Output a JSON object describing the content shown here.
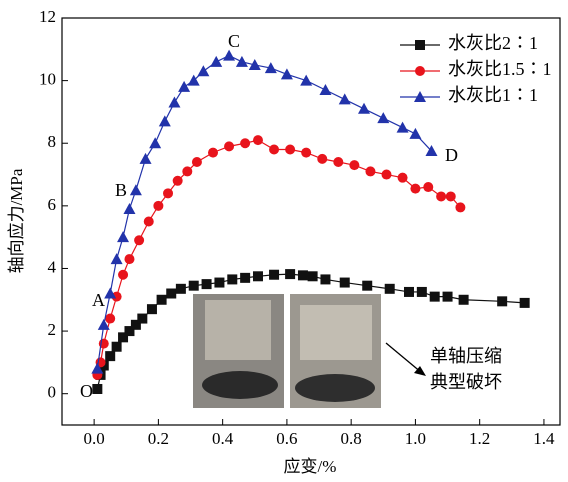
{
  "chart_data": {
    "type": "line",
    "x_label": "应变/%",
    "y_label": "轴向应力/MPa",
    "xlim": [
      -0.1,
      1.45
    ],
    "ylim": [
      -1,
      12
    ],
    "xticks": [
      {
        "value": 0,
        "label": "0.0"
      },
      {
        "value": 0.2,
        "label": "0.2"
      },
      {
        "value": 0.4,
        "label": "0.4"
      },
      {
        "value": 0.6,
        "label": "0.6"
      },
      {
        "value": 0.8,
        "label": "0.8"
      },
      {
        "value": 1.0,
        "label": "1.0"
      },
      {
        "value": 1.2,
        "label": "1.2"
      },
      {
        "value": 1.4,
        "label": "1.4"
      }
    ],
    "yticks": [
      0,
      2,
      4,
      6,
      8,
      10,
      12
    ],
    "legend": "upper-right",
    "annotations": {
      "O": "O",
      "A": "A",
      "B": "B",
      "C": "C",
      "D": "D",
      "note1": "单轴压缩",
      "note2": "典型破坏"
    },
    "series": [
      {
        "name": "水灰比2∶1",
        "color": "#111111",
        "marker": "square",
        "x": [
          0.01,
          0.02,
          0.03,
          0.05,
          0.07,
          0.09,
          0.11,
          0.13,
          0.15,
          0.18,
          0.21,
          0.24,
          0.27,
          0.31,
          0.35,
          0.39,
          0.43,
          0.47,
          0.51,
          0.56,
          0.61,
          0.65,
          0.68,
          0.72,
          0.78,
          0.85,
          0.92,
          0.98,
          1.02,
          1.06,
          1.1,
          1.15,
          1.27,
          1.34
        ],
        "values": [
          0.15,
          0.6,
          0.9,
          1.2,
          1.5,
          1.8,
          2.0,
          2.2,
          2.4,
          2.7,
          3.0,
          3.2,
          3.35,
          3.45,
          3.5,
          3.55,
          3.65,
          3.7,
          3.75,
          3.8,
          3.82,
          3.78,
          3.75,
          3.65,
          3.55,
          3.45,
          3.35,
          3.25,
          3.25,
          3.1,
          3.1,
          3.0,
          2.95,
          2.9
        ]
      },
      {
        "name": "水灰比1.5∶1",
        "color": "#e8141c",
        "marker": "circle",
        "x": [
          0.01,
          0.02,
          0.03,
          0.05,
          0.07,
          0.09,
          0.11,
          0.14,
          0.17,
          0.2,
          0.23,
          0.26,
          0.29,
          0.32,
          0.37,
          0.42,
          0.47,
          0.51,
          0.56,
          0.61,
          0.66,
          0.71,
          0.76,
          0.81,
          0.86,
          0.91,
          0.96,
          1.0,
          1.04,
          1.08,
          1.11,
          1.14
        ],
        "values": [
          0.6,
          1.0,
          1.6,
          2.4,
          3.1,
          3.8,
          4.3,
          4.9,
          5.5,
          6.0,
          6.4,
          6.8,
          7.1,
          7.4,
          7.7,
          7.9,
          8.0,
          8.1,
          7.8,
          7.8,
          7.7,
          7.5,
          7.4,
          7.3,
          7.1,
          7.0,
          6.9,
          6.55,
          6.6,
          6.3,
          6.3,
          5.95
        ]
      },
      {
        "name": "水灰比1∶1",
        "color": "#2233aa",
        "marker": "triangle",
        "x": [
          0.01,
          0.03,
          0.05,
          0.07,
          0.09,
          0.11,
          0.13,
          0.16,
          0.19,
          0.22,
          0.25,
          0.28,
          0.31,
          0.34,
          0.38,
          0.42,
          0.46,
          0.5,
          0.55,
          0.6,
          0.66,
          0.72,
          0.78,
          0.84,
          0.9,
          0.96,
          1.0,
          1.05
        ],
        "values": [
          0.8,
          2.2,
          3.2,
          4.3,
          5.0,
          5.9,
          6.5,
          7.5,
          8.0,
          8.7,
          9.3,
          9.8,
          10.0,
          10.3,
          10.6,
          10.8,
          10.6,
          10.5,
          10.4,
          10.2,
          10.0,
          9.7,
          9.4,
          9.1,
          8.8,
          8.5,
          8.3,
          7.75
        ]
      }
    ]
  }
}
